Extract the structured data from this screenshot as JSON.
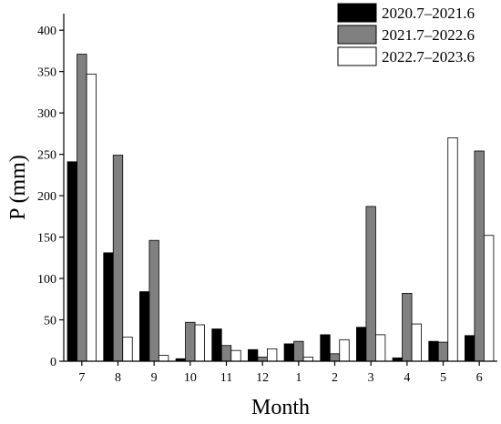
{
  "chart_data": {
    "type": "bar",
    "title": "",
    "xlabel": "Month",
    "ylabel": "P (mm)",
    "ylim": [
      0,
      420
    ],
    "yticks": [
      0,
      50,
      100,
      150,
      200,
      250,
      300,
      350,
      400
    ],
    "grid": false,
    "legend_position": "top-right",
    "categories": [
      "7",
      "8",
      "9",
      "10",
      "11",
      "12",
      "1",
      "2",
      "3",
      "4",
      "5",
      "6"
    ],
    "series": [
      {
        "name": "2020.7–2021.6",
        "color": "#000000",
        "values": [
          241,
          131,
          84,
          3,
          39,
          14,
          21,
          32,
          41,
          4,
          24,
          31
        ]
      },
      {
        "name": "2021.7–2022.6",
        "color": "#808080",
        "values": [
          371,
          249,
          146,
          47,
          19,
          5,
          24,
          9,
          187,
          82,
          23,
          254
        ]
      },
      {
        "name": "2022.7–2023.6",
        "color": "#ffffff",
        "values": [
          347,
          29,
          7,
          44,
          13,
          15,
          5,
          26,
          32,
          45,
          270,
          152
        ]
      }
    ]
  }
}
